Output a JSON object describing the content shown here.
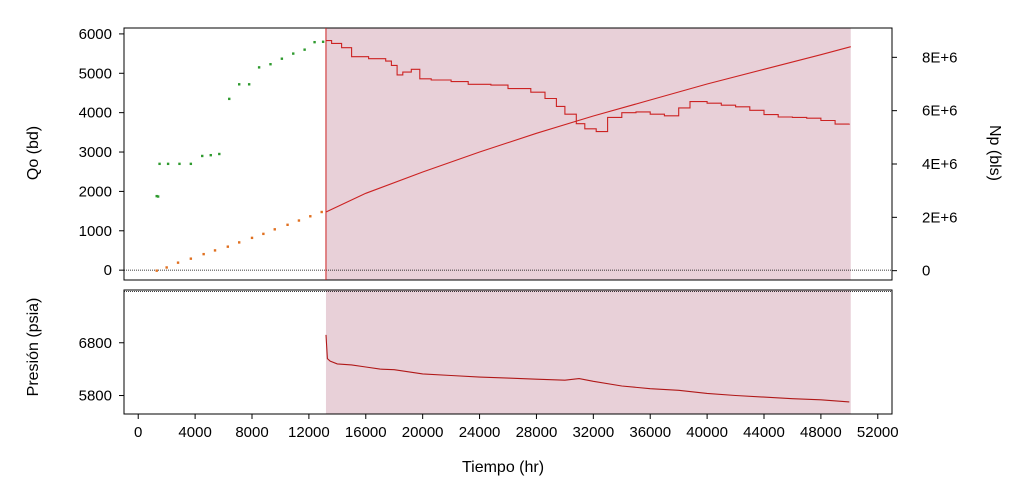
{
  "chart_data": {
    "type": "line",
    "x_axis": {
      "label": "Tiempo (hr)",
      "range": [
        -1000,
        53000
      ],
      "ticks": [
        0,
        4000,
        8000,
        12000,
        16000,
        20000,
        24000,
        28000,
        32000,
        36000,
        40000,
        44000,
        48000,
        52000
      ]
    },
    "shaded_region": {
      "x_start": 13200,
      "x_end": 50100,
      "color": "#e8d0d8"
    },
    "top_panel": {
      "y_left": {
        "label": "Qo (bd)",
        "range": [
          -250,
          6150
        ],
        "ticks": [
          0,
          1000,
          2000,
          3000,
          4000,
          5000,
          6000
        ]
      },
      "y_right": {
        "label": "Np (bls)",
        "range": [
          -350000,
          9100000
        ],
        "ticks": [
          0,
          2000000,
          4000000,
          6000000,
          8000000
        ],
        "tick_labels": [
          "0",
          "2E+6",
          "4E+6",
          "6E+6",
          "8E+6"
        ]
      },
      "series": [
        {
          "style": "points",
          "axis": "left",
          "color": "#2e9a2e",
          "x": [
            1300,
            1400,
            1500,
            2100,
            2900,
            3700,
            4500,
            5100,
            5700,
            6400,
            7100,
            7800,
            8500,
            9300,
            10100,
            10900,
            11700,
            12400,
            13000
          ],
          "y": [
            1880,
            1870,
            2700,
            2700,
            2700,
            2700,
            2900,
            2920,
            2950,
            4350,
            4720,
            4720,
            5150,
            5230,
            5370,
            5500,
            5600,
            5790,
            5800
          ]
        },
        {
          "style": "points",
          "axis": "right",
          "color": "#e07020",
          "x": [
            1300,
            2000,
            2800,
            3700,
            4600,
            5400,
            6300,
            7100,
            8000,
            8800,
            9600,
            10500,
            11300,
            12100,
            12900
          ],
          "y": [
            0,
            120000,
            300000,
            450000,
            620000,
            760000,
            900000,
            1060000,
            1230000,
            1380000,
            1550000,
            1720000,
            1880000,
            2040000,
            2200000
          ]
        },
        {
          "style": "step",
          "axis": "left",
          "color": "#cc2222",
          "x": [
            13200,
            13600,
            14300,
            15000,
            16200,
            17000,
            17400,
            17800,
            18200,
            18600,
            19200,
            19800,
            20600,
            22000,
            23200,
            24800,
            26000,
            27600,
            28600,
            29400,
            30000,
            30800,
            31400,
            32200,
            33000,
            34000,
            35000,
            36000,
            37000,
            38000,
            38800,
            40000,
            41000,
            42000,
            43000,
            44000,
            45000,
            46000,
            47000,
            48000,
            49000,
            50000
          ],
          "y": [
            5830,
            5760,
            5650,
            5420,
            5370,
            5370,
            5310,
            5200,
            4960,
            5030,
            5100,
            4860,
            4830,
            4790,
            4720,
            4700,
            4610,
            4520,
            4360,
            4160,
            3960,
            3720,
            3590,
            3520,
            3880,
            4000,
            4020,
            3960,
            3920,
            4120,
            4280,
            4240,
            4190,
            4150,
            4060,
            3950,
            3890,
            3880,
            3860,
            3800,
            3710,
            3720
          ]
        },
        {
          "style": "line",
          "axis": "right",
          "color": "#cc2222",
          "x": [
            13200,
            16000,
            20000,
            24000,
            28000,
            32000,
            36000,
            40000,
            44000,
            48000,
            50100
          ],
          "y": [
            2200000,
            2900000,
            3700000,
            4450000,
            5150000,
            5800000,
            6400000,
            7000000,
            7550000,
            8100000,
            8400000
          ]
        }
      ]
    },
    "bottom_panel": {
      "y_left": {
        "label": "Presión (psia)",
        "range": [
          5450,
          7800
        ],
        "ticks": [
          5800,
          6800
        ]
      },
      "series": [
        {
          "style": "line",
          "axis": "left",
          "color": "#b01818",
          "x": [
            13200,
            13300,
            13500,
            14000,
            15000,
            16000,
            17000,
            18000,
            19000,
            20000,
            22000,
            24000,
            26000,
            28000,
            30000,
            31000,
            32000,
            34000,
            36000,
            38000,
            40000,
            42000,
            44000,
            46000,
            48000,
            50000
          ],
          "y": [
            6950,
            6500,
            6450,
            6400,
            6380,
            6340,
            6300,
            6290,
            6250,
            6210,
            6180,
            6150,
            6130,
            6110,
            6090,
            6120,
            6070,
            5980,
            5930,
            5900,
            5840,
            5800,
            5770,
            5740,
            5720,
            5680
          ]
        }
      ]
    }
  }
}
